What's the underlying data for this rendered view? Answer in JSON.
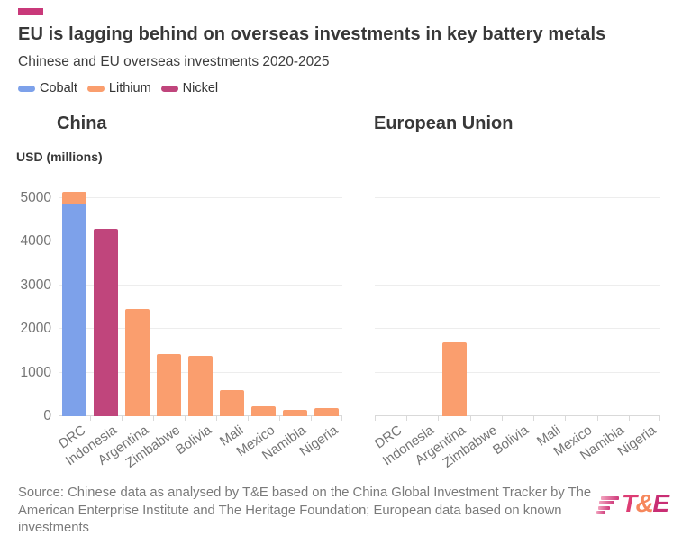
{
  "header": {
    "marker_color": "#c9397a",
    "title": "EU is lagging behind on overseas investments in key battery metals",
    "subtitle": "Chinese and EU overseas investments 2020-2025"
  },
  "legend": [
    {
      "label": "Cobalt",
      "color": "#7da1ea"
    },
    {
      "label": "Lithium",
      "color": "#fa9e6e"
    },
    {
      "label": "Nickel",
      "color": "#c0457c"
    }
  ],
  "chart_data": {
    "type": "bar",
    "categories": [
      "DRC",
      "Indonesia",
      "Argentina",
      "Zimbabwe",
      "Bolivia",
      "Mali",
      "Mexico",
      "Namibia",
      "Nigeria"
    ],
    "ylabel": "USD (millions)",
    "ylim": [
      0,
      5000
    ],
    "yticks": [
      0,
      1000,
      2000,
      3000,
      4000,
      5000
    ],
    "grid": true,
    "legend_position": "top",
    "stacked": true,
    "panels": [
      {
        "title": "China",
        "series": [
          {
            "name": "Cobalt",
            "color": "#7da1ea",
            "values": [
              4870,
              0,
              0,
              0,
              0,
              0,
              0,
              0,
              0
            ]
          },
          {
            "name": "Lithium",
            "color": "#fa9e6e",
            "values": [
              280,
              0,
              2450,
              1420,
              1380,
              600,
              220,
              150,
              180
            ]
          },
          {
            "name": "Nickel",
            "color": "#c0457c",
            "values": [
              0,
              4300,
              0,
              0,
              0,
              0,
              0,
              0,
              0
            ]
          }
        ]
      },
      {
        "title": "European Union",
        "series": [
          {
            "name": "Cobalt",
            "color": "#7da1ea",
            "values": [
              0,
              0,
              0,
              0,
              0,
              0,
              0,
              0,
              0
            ]
          },
          {
            "name": "Lithium",
            "color": "#fa9e6e",
            "values": [
              0,
              0,
              1700,
              0,
              0,
              0,
              0,
              0,
              0
            ]
          },
          {
            "name": "Nickel",
            "color": "#c0457c",
            "values": [
              0,
              0,
              0,
              0,
              0,
              0,
              0,
              0,
              0
            ]
          }
        ]
      }
    ]
  },
  "footer": {
    "source": "Source: Chinese data as analysed by T&E based on the China Global Investment Tracker by The\nAmerican Enterprise Institute and The Heritage Foundation; European data based on known\ninvestments",
    "logo_text": "T&E"
  }
}
